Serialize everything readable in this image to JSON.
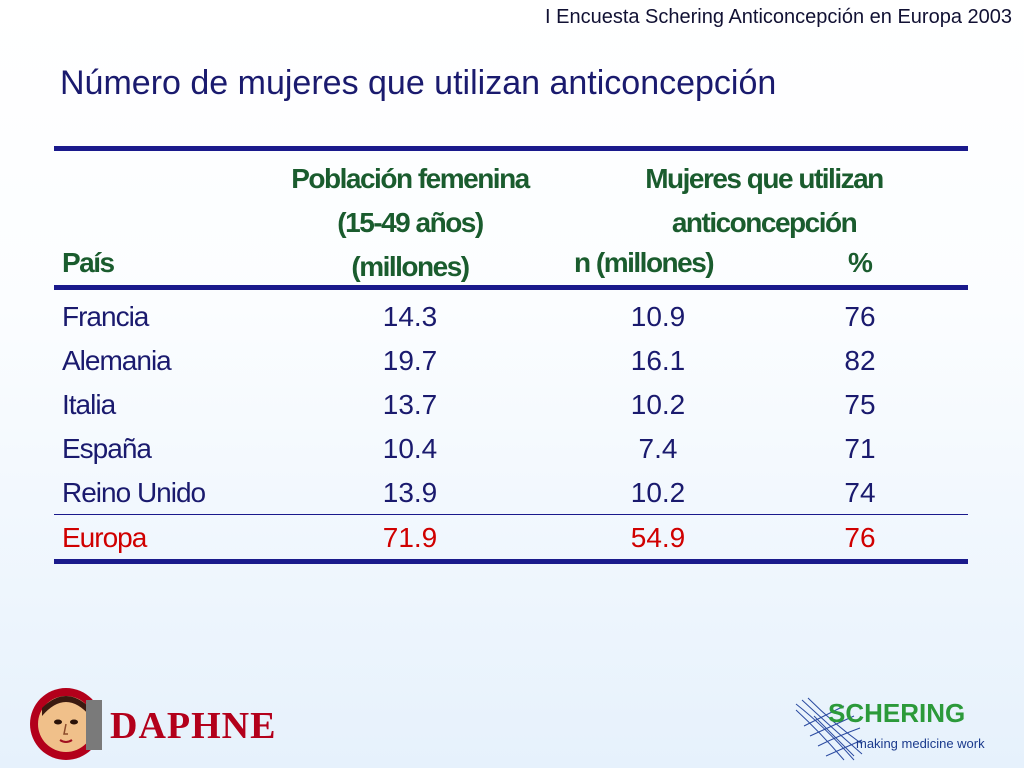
{
  "header": {
    "survey": "I Encuesta Schering Anticoncepción en Europa 2003",
    "title": "Número de mujeres que utilizan anticoncepción"
  },
  "table": {
    "col_country": "País",
    "col_population": [
      "Población femenina",
      "(15-49 años)",
      "(millones)"
    ],
    "col_users_group": [
      "Mujeres que utilizan",
      "anticoncepción"
    ],
    "col_users_n": "n (millones)",
    "col_users_pct": "%",
    "rows": [
      {
        "country": "Francia",
        "population": "14.3",
        "n": "10.9",
        "pct": "76"
      },
      {
        "country": "Alemania",
        "population": "19.7",
        "n": "16.1",
        "pct": "82"
      },
      {
        "country": "Italia",
        "population": "13.7",
        "n": "10.2",
        "pct": "75"
      },
      {
        "country": "España",
        "population": "10.4",
        "n": "7.4",
        "pct": "71"
      },
      {
        "country": "Reino Unido",
        "population": "13.9",
        "n": "10.2",
        "pct": "74"
      }
    ],
    "total": {
      "country": "Europa",
      "population": "71.9",
      "n": "54.9",
      "pct": "76"
    }
  },
  "logos": {
    "daphne": "DAPHNE",
    "schering_name": "SCHERING",
    "schering_tagline": "making medicine work"
  },
  "colors": {
    "title": "#1a1a6e",
    "header_text": "#1a5c2e",
    "total_row": "#d00000",
    "rule": "#1a1a8c"
  }
}
